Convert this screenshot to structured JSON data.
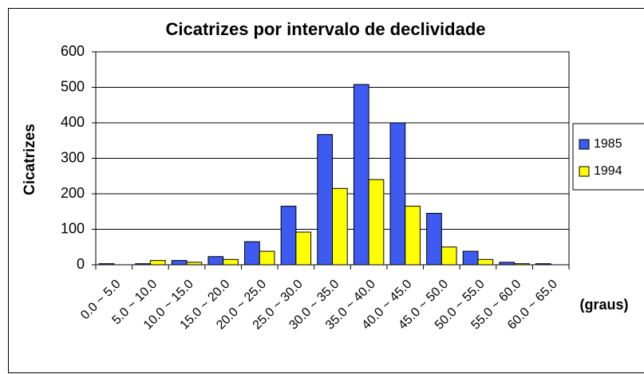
{
  "chart_data": {
    "type": "bar",
    "title": "Cicatrizes por intervalo de declividade",
    "ylabel": "Cicatrizes",
    "xlabel": "(graus)",
    "categories": [
      "0.0 ~ 5.0",
      "5.0 ~ 10.0",
      "10.0 ~ 15.0",
      "15.0 ~ 20.0",
      "20.0 ~ 25.0",
      "25.0 ~ 30.0",
      "30.0 ~ 35.0",
      "35.0 ~ 40.0",
      "40.0 ~ 45.0",
      "45.0 ~ 50.0",
      "50.0 ~ 55.0",
      "55.0 ~ 60.0",
      "60.0 ~ 65.0"
    ],
    "series": [
      {
        "name": "1985",
        "color": "#3d5af1",
        "values": [
          3,
          3,
          12,
          23,
          65,
          165,
          367,
          508,
          400,
          145,
          38,
          7,
          3
        ]
      },
      {
        "name": "1994",
        "color": "#ffff00",
        "values": [
          0,
          12,
          7,
          15,
          38,
          92,
          215,
          240,
          165,
          50,
          15,
          3,
          0
        ]
      }
    ],
    "ylim": [
      0,
      600
    ],
    "yticks": [
      0,
      100,
      200,
      300,
      400,
      500,
      600
    ],
    "grid": true,
    "legend": "right"
  }
}
